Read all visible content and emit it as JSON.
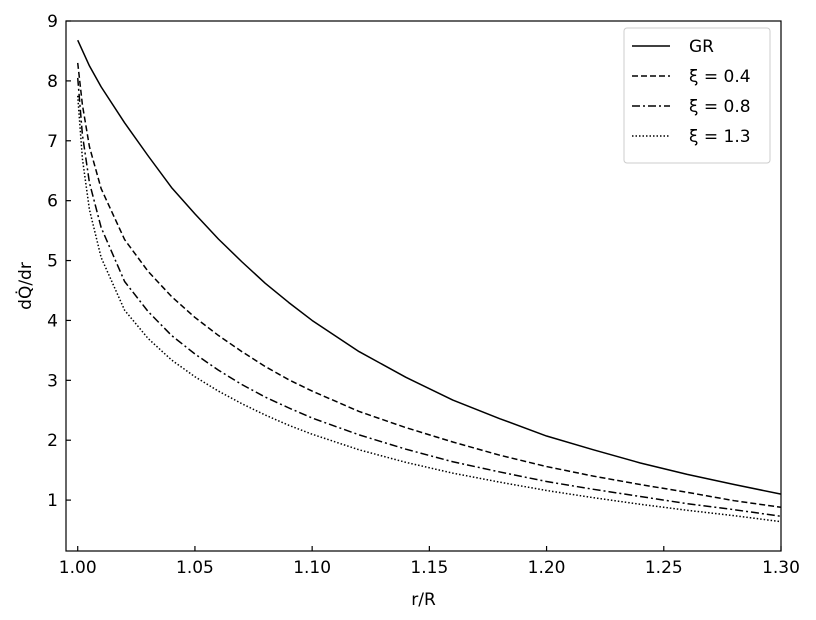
{
  "chart_data": {
    "type": "line",
    "title": "",
    "xlabel": "r/R",
    "ylabel": "dQ̇/dr",
    "xlim": [
      0.995,
      1.3
    ],
    "ylim": [
      0.15,
      9
    ],
    "xticks": [
      1.0,
      1.05,
      1.1,
      1.15,
      1.2,
      1.25,
      1.3
    ],
    "xtick_labels": [
      "1.00",
      "1.05",
      "1.10",
      "1.15",
      "1.20",
      "1.25",
      "1.30"
    ],
    "yticks": [
      1,
      2,
      3,
      4,
      5,
      6,
      7,
      8,
      9
    ],
    "ytick_labels": [
      "1",
      "2",
      "3",
      "4",
      "5",
      "6",
      "7",
      "8",
      "9"
    ],
    "grid": false,
    "legend_position": "top-right",
    "series": [
      {
        "name": "GR",
        "style": "solid",
        "x": [
          1.0,
          1.005,
          1.01,
          1.02,
          1.03,
          1.04,
          1.05,
          1.06,
          1.07,
          1.08,
          1.09,
          1.1,
          1.12,
          1.14,
          1.16,
          1.18,
          1.2,
          1.22,
          1.24,
          1.26,
          1.28,
          1.3
        ],
        "y": [
          8.68,
          8.25,
          7.9,
          7.3,
          6.75,
          6.22,
          5.78,
          5.36,
          4.98,
          4.62,
          4.3,
          4.0,
          3.48,
          3.05,
          2.67,
          2.36,
          2.07,
          1.84,
          1.62,
          1.43,
          1.26,
          1.1
        ]
      },
      {
        "name": "ξ = 0.4",
        "style": "dashed",
        "x": [
          1.0,
          1.002,
          1.005,
          1.01,
          1.02,
          1.03,
          1.04,
          1.05,
          1.06,
          1.07,
          1.08,
          1.09,
          1.1,
          1.12,
          1.14,
          1.16,
          1.18,
          1.2,
          1.22,
          1.24,
          1.26,
          1.28,
          1.3
        ],
        "y": [
          8.3,
          7.6,
          6.9,
          6.2,
          5.35,
          4.82,
          4.4,
          4.05,
          3.75,
          3.48,
          3.23,
          3.01,
          2.82,
          2.48,
          2.21,
          1.97,
          1.75,
          1.56,
          1.4,
          1.26,
          1.13,
          0.99,
          0.88
        ]
      },
      {
        "name": "ξ = 0.8",
        "style": "dashdot",
        "x": [
          1.0,
          1.002,
          1.005,
          1.01,
          1.02,
          1.03,
          1.04,
          1.05,
          1.06,
          1.07,
          1.08,
          1.09,
          1.1,
          1.12,
          1.14,
          1.16,
          1.18,
          1.2,
          1.22,
          1.24,
          1.26,
          1.28,
          1.3
        ],
        "y": [
          8.05,
          7.1,
          6.3,
          5.55,
          4.65,
          4.15,
          3.75,
          3.44,
          3.17,
          2.93,
          2.72,
          2.54,
          2.37,
          2.09,
          1.85,
          1.64,
          1.47,
          1.31,
          1.18,
          1.06,
          0.94,
          0.84,
          0.73
        ]
      },
      {
        "name": "ξ = 1.3",
        "style": "dotted",
        "x": [
          1.0,
          1.002,
          1.005,
          1.01,
          1.02,
          1.03,
          1.04,
          1.05,
          1.06,
          1.07,
          1.08,
          1.09,
          1.1,
          1.12,
          1.14,
          1.16,
          1.18,
          1.2,
          1.22,
          1.24,
          1.26,
          1.28,
          1.3
        ],
        "y": [
          7.75,
          6.7,
          5.85,
          5.05,
          4.17,
          3.7,
          3.34,
          3.06,
          2.82,
          2.61,
          2.42,
          2.25,
          2.1,
          1.84,
          1.63,
          1.45,
          1.3,
          1.16,
          1.04,
          0.93,
          0.83,
          0.74,
          0.64
        ]
      }
    ]
  }
}
